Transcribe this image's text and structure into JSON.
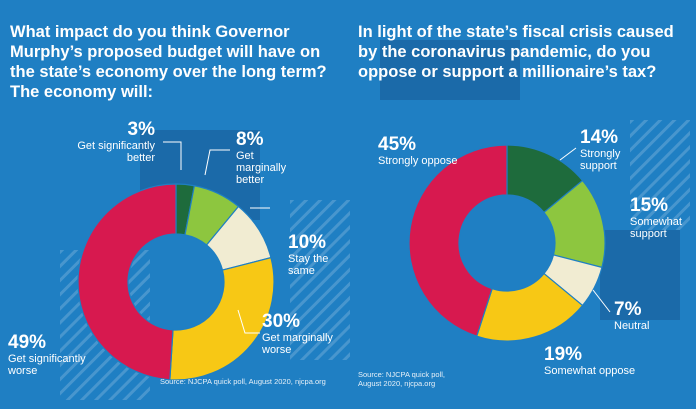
{
  "chart_data": [
    {
      "type": "pie",
      "title": "What impact do you think Governor Murphy’s proposed budget will have on the state’s economy over the long term? The economy will:",
      "categories": [
        "Get significantly better",
        "Get marginally better",
        "Stay the same",
        "Get marginally worse",
        "Get significantly worse"
      ],
      "values": [
        3,
        8,
        10,
        30,
        49
      ],
      "value_labels": [
        "3%",
        "8%",
        "10%",
        "30%",
        "49%"
      ],
      "colors": [
        "#1e6b3c",
        "#8dc63f",
        "#f1ecd2",
        "#f7c815",
        "#d7194f"
      ],
      "source": "Source: NJCPA quick poll, August 2020, njcpa.org"
    },
    {
      "type": "pie",
      "title": "In light of the state’s fiscal crisis caused by the coronavirus pandemic, do you oppose or support a millionaire’s tax?",
      "categories": [
        "Strongly support",
        "Somewhat support",
        "Neutral",
        "Somewhat oppose",
        "Strongly oppose"
      ],
      "values": [
        14,
        15,
        7,
        19,
        45
      ],
      "value_labels": [
        "14%",
        "15%",
        "7%",
        "19%",
        "45%"
      ],
      "colors": [
        "#1e6b3c",
        "#8dc63f",
        "#f1ecd2",
        "#f7c815",
        "#d7194f"
      ],
      "source": "Source: NJCPA quick poll,\nAugust 2020, njcpa.org"
    }
  ]
}
